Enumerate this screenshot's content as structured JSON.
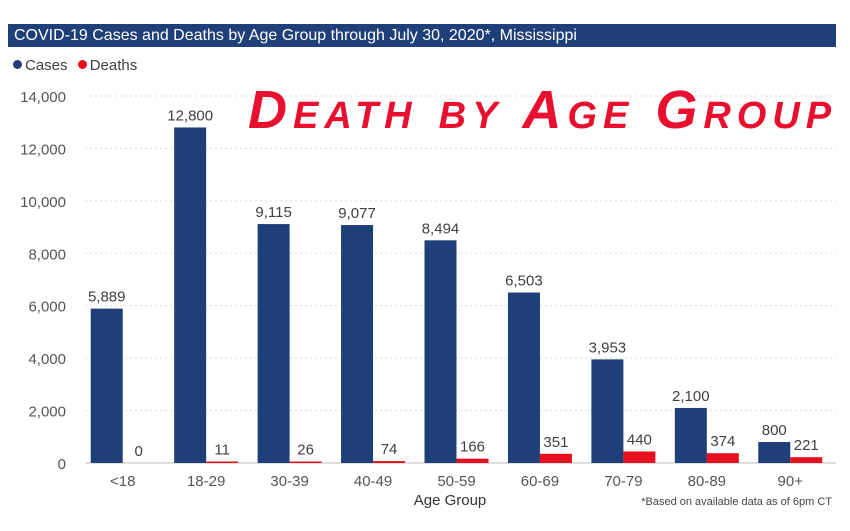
{
  "title": "COVID-19 Cases and Deaths by Age Group through July 30, 2020*, Mississippi",
  "overlay_title": "Death by Age Group",
  "footnote": "*Based on available data as of 6pm CT",
  "colors": {
    "cases": "#1f3f78",
    "deaths": "#e8101e",
    "title_bar": "#1f3f78",
    "overlay_text": "#e8102e",
    "grid": "#d9d9d9"
  },
  "chart_data": {
    "type": "bar",
    "categories": [
      "<18",
      "18-29",
      "30-39",
      "40-49",
      "50-59",
      "60-69",
      "70-79",
      "80-89",
      "90+"
    ],
    "series": [
      {
        "name": "Cases",
        "values": [
          5889,
          12800,
          9115,
          9077,
          8494,
          6503,
          3953,
          2100,
          800
        ]
      },
      {
        "name": "Deaths",
        "values": [
          0,
          11,
          26,
          74,
          166,
          351,
          440,
          374,
          221
        ]
      }
    ],
    "data_labels": {
      "Cases": [
        "5,889",
        "12,800",
        "9,115",
        "9,077",
        "8,494",
        "6,503",
        "3,953",
        "2,100",
        "800"
      ],
      "Deaths": [
        "0",
        "11",
        "26",
        "74",
        "166",
        "351",
        "440",
        "374",
        "221"
      ]
    },
    "xlabel": "Age Group",
    "ylabel": "",
    "ylim": [
      0,
      14000
    ],
    "yticks": [
      0,
      2000,
      4000,
      6000,
      8000,
      10000,
      12000,
      14000
    ],
    "ytick_labels": [
      "0",
      "2,000",
      "4,000",
      "6,000",
      "8,000",
      "10,000",
      "12,000",
      "14,000"
    ],
    "grid": true,
    "legend_position": "top-left"
  }
}
